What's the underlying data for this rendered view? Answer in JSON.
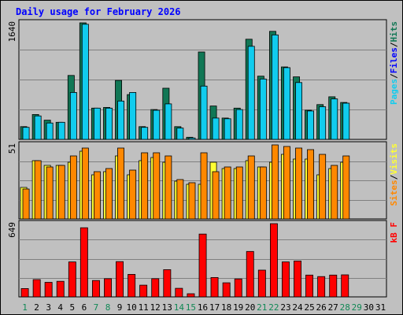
{
  "title": "Daily usage for February 2026",
  "colors": {
    "pages": "#117755",
    "files": "#11ccee",
    "hits": "#117755",
    "sites": "#ff8800",
    "visits": "#ffff33",
    "kbf": "#ff0000",
    "weekend_day_label": "#118855",
    "weekday_label": "#000000"
  },
  "chart_data": [
    {
      "type": "bar",
      "title": "",
      "panel": "top",
      "ymax_label": "1640",
      "legend": [
        {
          "label": "Pages",
          "color": "#11ccee"
        },
        {
          "label": "/",
          "color": "#000000"
        },
        {
          "label": "Files",
          "color": "#0000ff"
        },
        {
          "label": "/",
          "color": "#000000"
        },
        {
          "label": "Hits",
          "color": "#117755"
        }
      ],
      "categories": [
        "1",
        "2",
        "3",
        "4",
        "5",
        "6",
        "7",
        "8",
        "9",
        "10",
        "11",
        "12",
        "13",
        "14",
        "15",
        "16",
        "17",
        "18",
        "19",
        "20",
        "21",
        "22",
        "23",
        "24",
        "25",
        "26",
        "27",
        "28"
      ],
      "series": [
        {
          "name": "Hits",
          "values": [
            180,
            350,
            270,
            240,
            900,
            1640,
            440,
            450,
            830,
            630,
            180,
            420,
            720,
            180,
            30,
            1230,
            470,
            300,
            440,
            1410,
            890,
            1520,
            1020,
            880,
            410,
            490,
            600,
            520
          ]
        },
        {
          "name": "Files",
          "values": [
            170,
            330,
            230,
            240,
            660,
            1620,
            440,
            440,
            540,
            660,
            170,
            410,
            500,
            160,
            20,
            750,
            300,
            290,
            420,
            1310,
            850,
            1470,
            1010,
            800,
            400,
            460,
            570,
            510
          ]
        }
      ]
    },
    {
      "type": "bar",
      "title": "",
      "panel": "middle",
      "ymax_label": "51",
      "legend": [
        {
          "label": "Sites",
          "color": "#ff8800"
        },
        {
          "label": "/",
          "color": "#000000"
        },
        {
          "label": "Visits",
          "color": "#ffff33"
        }
      ],
      "categories": [
        "1",
        "2",
        "3",
        "4",
        "5",
        "6",
        "7",
        "8",
        "9",
        "10",
        "11",
        "12",
        "13",
        "14",
        "15",
        "16",
        "17",
        "18",
        "19",
        "20",
        "21",
        "22",
        "23",
        "24",
        "25",
        "26",
        "27",
        "28"
      ],
      "series": [
        {
          "name": "Visits",
          "values": [
            20,
            37,
            34,
            34,
            36,
            43,
            28,
            30,
            40,
            28,
            37,
            39,
            36,
            24,
            22,
            22,
            36,
            32,
            32,
            37,
            33,
            36,
            41,
            38,
            38,
            28,
            32,
            36
          ]
        },
        {
          "name": "Sites",
          "values": [
            19,
            37,
            33,
            34,
            40,
            45,
            30,
            32,
            45,
            31,
            42,
            42,
            40,
            25,
            23,
            42,
            30,
            33,
            33,
            40,
            33,
            47,
            46,
            45,
            44,
            41,
            34,
            40
          ]
        }
      ]
    },
    {
      "type": "bar",
      "title": "",
      "panel": "bottom",
      "ymax_label": "649",
      "legend": [
        {
          "label": "kB F",
          "color": "#ff0000"
        }
      ],
      "categories": [
        "1",
        "2",
        "3",
        "4",
        "5",
        "6",
        "7",
        "8",
        "9",
        "10",
        "11",
        "12",
        "13",
        "14",
        "15",
        "16",
        "17",
        "18",
        "19",
        "20",
        "21",
        "22",
        "23",
        "24",
        "25",
        "26",
        "27",
        "28"
      ],
      "series": [
        {
          "name": "kB F",
          "values": [
            70,
            145,
            122,
            130,
            292,
            578,
            137,
            152,
            295,
            188,
            98,
            152,
            228,
            72,
            26,
            525,
            162,
            118,
            150,
            380,
            224,
            612,
            292,
            300,
            182,
            170,
            182,
            184
          ]
        }
      ]
    }
  ],
  "x_axis": {
    "days": [
      "1",
      "2",
      "3",
      "4",
      "5",
      "6",
      "7",
      "8",
      "9",
      "10",
      "11",
      "12",
      "13",
      "14",
      "15",
      "16",
      "17",
      "18",
      "19",
      "20",
      "21",
      "22",
      "23",
      "24",
      "25",
      "26",
      "27",
      "28",
      "29",
      "30",
      "31"
    ],
    "weekend_days": [
      "1",
      "7",
      "8",
      "14",
      "15",
      "21",
      "22",
      "28",
      "29"
    ]
  }
}
